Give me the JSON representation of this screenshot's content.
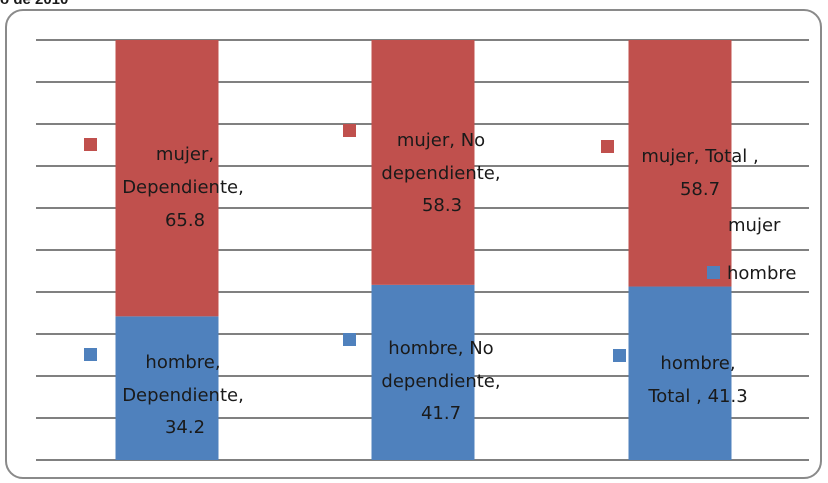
{
  "page": {
    "title": "o de 2010"
  },
  "chart_data": {
    "type": "bar",
    "stacked": true,
    "percent_stacked": true,
    "categories": [
      "Dependiente",
      "No dependiente",
      "Total"
    ],
    "series": [
      {
        "name": "hombre",
        "color": "#4f81bd",
        "values": [
          34.2,
          41.7,
          41.3
        ]
      },
      {
        "name": "mujer",
        "color": "#c0504d",
        "values": [
          65.8,
          58.3,
          58.7
        ]
      }
    ],
    "data_labels": {
      "hombre": [
        [
          "hombre,",
          "Dependiente,",
          "34.2"
        ],
        [
          "hombre, No",
          "dependiente,",
          "41.7"
        ],
        [
          "hombre,",
          "Total , 41.3"
        ]
      ],
      "mujer": [
        [
          "mujer,",
          "Dependiente,",
          "65.8"
        ],
        [
          "mujer, No",
          "dependiente,",
          "58.3"
        ],
        [
          "mujer, Total ,",
          "58.7"
        ]
      ]
    },
    "legend": {
      "position": "right",
      "entries": [
        "mujer",
        "hombre"
      ]
    },
    "ylim": [
      0,
      100
    ],
    "grid": true,
    "gridlines": 10
  }
}
